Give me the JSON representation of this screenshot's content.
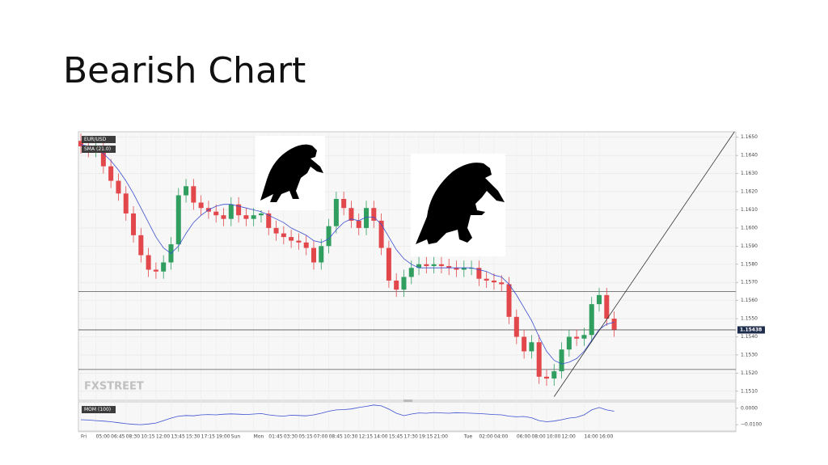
{
  "chart_data": [
    {
      "type": "candlestick",
      "title": "Bearish Chart",
      "categories": [
        "Fri",
        null,
        "05:00",
        null,
        "06:45",
        null,
        "08:30",
        null,
        "10:15",
        null,
        "12:00",
        null,
        "13:45",
        null,
        "15:30",
        null,
        "17:15",
        null,
        "19:00",
        null,
        "Sun",
        null,
        null,
        "Mon",
        null,
        "01:45",
        null,
        "03:30",
        null,
        "05:15",
        null,
        "07:00",
        null,
        "08:45",
        null,
        "10:30",
        null,
        "12:15",
        null,
        "14:00",
        null,
        "15:45",
        null,
        "17:30",
        null,
        "19:15",
        null,
        "21:00",
        null,
        null,
        null,
        "Tue",
        null,
        "02:00",
        null,
        "04:00",
        null,
        null,
        "06:00",
        null,
        "08:00",
        null,
        "10:00",
        null,
        "12:00",
        null,
        null,
        "14:00",
        null,
        "16:00",
        null,
        null
      ],
      "series": [
        {
          "name": "EUR/USD",
          "up_color": "#2f9e5f",
          "down_color": "#e2474b",
          "open": [
            1.1648,
            1.1645,
            1.1643,
            1.1644,
            1.1634,
            1.1626,
            1.1619,
            1.1608,
            1.1596,
            1.1585,
            1.1577,
            1.1576,
            1.1581,
            1.1591,
            1.1618,
            1.1623,
            1.1614,
            1.1611,
            1.1609,
            1.1607,
            1.1605,
            1.1613,
            1.1607,
            1.1605,
            1.1607,
            1.1608,
            1.16,
            1.1597,
            1.1595,
            1.1593,
            1.1592,
            1.1589,
            1.1581,
            1.159,
            1.1601,
            1.1616,
            1.1611,
            1.1604,
            1.16,
            1.1611,
            1.1604,
            1.1589,
            1.1571,
            1.1566,
            1.1573,
            1.1578,
            1.158,
            1.1579,
            1.158,
            1.1579,
            1.1578,
            1.1577,
            1.1578,
            1.1578,
            1.1572,
            1.1571,
            1.157,
            1.1569,
            1.1551,
            1.154,
            1.1532,
            1.1537,
            1.1518,
            1.1517,
            1.1521,
            1.1533,
            1.154,
            1.1539,
            1.1541,
            1.1558,
            1.1563,
            1.155
          ],
          "high": [
            1.1652,
            1.1649,
            1.1648,
            1.1648,
            1.1638,
            1.163,
            1.1623,
            1.1612,
            1.16,
            1.1589,
            1.1581,
            1.1585,
            1.1595,
            1.1622,
            1.1627,
            1.1627,
            1.1618,
            1.1615,
            1.1613,
            1.1611,
            1.1617,
            1.1617,
            1.1611,
            1.1611,
            1.1612,
            1.1612,
            1.1604,
            1.1601,
            1.1599,
            1.1597,
            1.1596,
            1.1593,
            1.1594,
            1.1605,
            1.162,
            1.162,
            1.1615,
            1.1608,
            1.1615,
            1.1615,
            1.1608,
            1.1593,
            1.1575,
            1.1577,
            1.1582,
            1.1584,
            1.1584,
            1.1584,
            1.1584,
            1.1583,
            1.1582,
            1.1582,
            1.1582,
            1.1582,
            1.1576,
            1.1575,
            1.1574,
            1.1573,
            1.1555,
            1.1544,
            1.1541,
            1.1541,
            1.1522,
            1.1525,
            1.1537,
            1.1544,
            1.1544,
            1.1545,
            1.1562,
            1.1567,
            1.1567,
            1.1554
          ],
          "low": [
            1.1641,
            1.1639,
            1.1639,
            1.163,
            1.1622,
            1.1615,
            1.1604,
            1.1592,
            1.1581,
            1.1573,
            1.1572,
            1.1572,
            1.1577,
            1.1587,
            1.1614,
            1.161,
            1.1607,
            1.1605,
            1.1603,
            1.1601,
            1.1601,
            1.1603,
            1.1601,
            1.1601,
            1.1603,
            1.1596,
            1.1593,
            1.1591,
            1.1589,
            1.1588,
            1.1585,
            1.1577,
            1.1577,
            1.1586,
            1.1597,
            1.1607,
            1.16,
            1.1596,
            1.1596,
            1.16,
            1.1585,
            1.1567,
            1.1562,
            1.1562,
            1.1569,
            1.1574,
            1.1575,
            1.1575,
            1.1575,
            1.1574,
            1.1573,
            1.1573,
            1.1574,
            1.1568,
            1.1567,
            1.1566,
            1.1565,
            1.1547,
            1.1536,
            1.1528,
            1.1528,
            1.1514,
            1.1513,
            1.1513,
            1.1517,
            1.1529,
            1.1535,
            1.1535,
            1.1537,
            1.1554,
            1.1546,
            1.154
          ],
          "close": [
            1.1645,
            1.1643,
            1.1644,
            1.1634,
            1.1626,
            1.1619,
            1.1608,
            1.1596,
            1.1585,
            1.1577,
            1.1576,
            1.1581,
            1.1591,
            1.1618,
            1.1623,
            1.1614,
            1.1611,
            1.1609,
            1.1607,
            1.1605,
            1.1613,
            1.1607,
            1.1605,
            1.1607,
            1.1608,
            1.16,
            1.1597,
            1.1595,
            1.1593,
            1.1592,
            1.1589,
            1.1581,
            1.159,
            1.1601,
            1.1616,
            1.1611,
            1.1604,
            1.16,
            1.1611,
            1.1604,
            1.1589,
            1.1571,
            1.1566,
            1.1573,
            1.1578,
            1.158,
            1.1579,
            1.158,
            1.1579,
            1.1578,
            1.1577,
            1.1578,
            1.1578,
            1.1572,
            1.1571,
            1.157,
            1.1569,
            1.1551,
            1.154,
            1.1532,
            1.1537,
            1.1518,
            1.1517,
            1.1521,
            1.1533,
            1.154,
            1.1539,
            1.1541,
            1.1558,
            1.1563,
            1.155,
            1.1544
          ]
        },
        {
          "name": "SMA (21.0)",
          "type": "line",
          "color": "#3b4fd1",
          "values": [
            1.1646,
            1.1645,
            1.1644,
            1.1641,
            1.1637,
            1.1632,
            1.1626,
            1.1619,
            1.1611,
            1.1603,
            1.1595,
            1.1589,
            1.1586,
            1.159,
            1.1597,
            1.1603,
            1.1607,
            1.161,
            1.1612,
            1.1613,
            1.1613,
            1.1612,
            1.1611,
            1.161,
            1.1609,
            1.1607,
            1.1605,
            1.1603,
            1.16,
            1.1598,
            1.1596,
            1.1593,
            1.1592,
            1.1594,
            1.1599,
            1.1603,
            1.1605,
            1.1604,
            1.1606,
            1.1606,
            1.1602,
            1.1595,
            1.1588,
            1.1583,
            1.158,
            1.1578,
            1.1578,
            1.1578,
            1.1578,
            1.1578,
            1.1578,
            1.1578,
            1.1578,
            1.1577,
            1.1576,
            1.1574,
            1.1573,
            1.1569,
            1.1563,
            1.1556,
            1.1549,
            1.154,
            1.1532,
            1.1527,
            1.1525,
            1.1526,
            1.1528,
            1.1532,
            1.1538,
            1.1544,
            1.1547,
            1.1548
          ]
        }
      ],
      "ylim": [
        1.1505,
        1.1653
      ],
      "yticks": [
        {
          "value": 1.151,
          "label": "1.1510"
        },
        {
          "value": 1.152,
          "label": "1.1520"
        },
        {
          "value": 1.153,
          "label": "1.1530"
        },
        {
          "value": 1.154,
          "label": "1.1540"
        },
        {
          "value": 1.155,
          "label": "1.1550"
        },
        {
          "value": 1.156,
          "label": "1.1560"
        },
        {
          "value": 1.157,
          "label": "1.1570"
        },
        {
          "value": 1.158,
          "label": "1.1580"
        },
        {
          "value": 1.159,
          "label": "1.1590"
        },
        {
          "value": 1.16,
          "label": "1.1600"
        },
        {
          "value": 1.161,
          "label": "1.1610"
        },
        {
          "value": 1.162,
          "label": "1.1620"
        },
        {
          "value": 1.163,
          "label": "1.1630"
        },
        {
          "value": 1.164,
          "label": "1.1640"
        },
        {
          "value": 1.165,
          "label": "1.1650"
        }
      ],
      "hlines": [
        1.1565,
        1.1522
      ],
      "last_price": {
        "value": 1.15438,
        "label": "1.15438"
      },
      "trend_line": {
        "x": [
          63,
          87
        ],
        "y": [
          1.1507,
          1.1653
        ]
      },
      "watermark": "FXSTREET",
      "grid": true
    },
    {
      "type": "line",
      "series": [
        {
          "name": "MOM (100)",
          "color": "#3b4fd1",
          "values": [
            -0.007,
            -0.0072,
            -0.0075,
            -0.0078,
            -0.0082,
            -0.0088,
            -0.0094,
            -0.0098,
            -0.01,
            -0.0096,
            -0.009,
            -0.0075,
            -0.006,
            -0.0048,
            -0.0044,
            -0.0046,
            -0.004,
            -0.0038,
            -0.004,
            -0.0036,
            -0.0034,
            -0.0036,
            -0.0038,
            -0.0035,
            -0.0032,
            -0.004,
            -0.0045,
            -0.0048,
            -0.0042,
            -0.0044,
            -0.0046,
            -0.004,
            -0.003,
            -0.0018,
            -0.001,
            -0.0008,
            -0.0004,
            0.0005,
            0.0012,
            0.002,
            0.0015,
            -0.0005,
            -0.003,
            -0.0045,
            -0.0035,
            -0.0028,
            -0.003,
            -0.0026,
            -0.0028,
            -0.003,
            -0.0027,
            -0.0028,
            -0.003,
            -0.0032,
            -0.0035,
            -0.0038,
            -0.004,
            -0.0048,
            -0.0052,
            -0.005,
            -0.0058,
            -0.0075,
            -0.0082,
            -0.0078,
            -0.007,
            -0.006,
            -0.0055,
            -0.004,
            -0.001,
            0.0005,
            -0.001,
            -0.0018
          ]
        }
      ],
      "ylim": [
        -0.0139,
        0.0039
      ],
      "yticks": [
        {
          "value": 0,
          "label": "0.0000"
        },
        {
          "value": -0.01,
          "label": "−0.0100"
        }
      ]
    }
  ]
}
